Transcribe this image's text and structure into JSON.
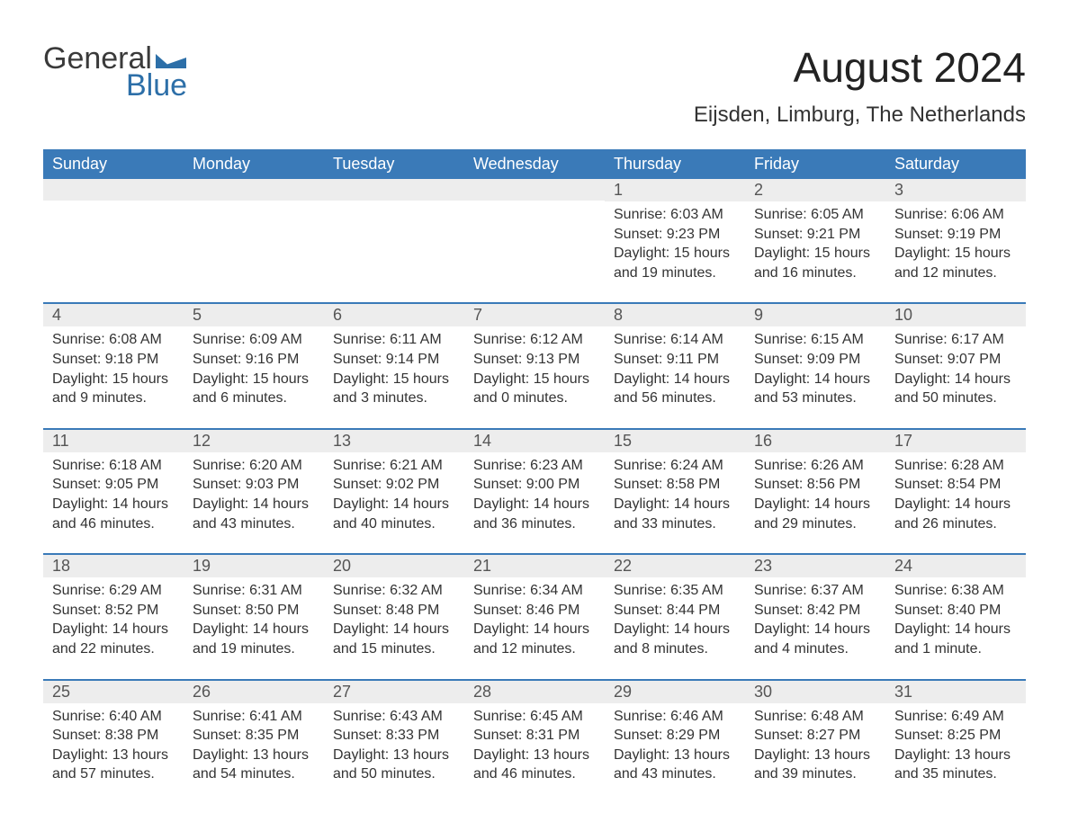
{
  "brand": {
    "word1": "General",
    "word2": "Blue"
  },
  "title": "August 2024",
  "location": "Eijsden, Limburg, The Netherlands",
  "colors": {
    "header_bg": "#3a7ab8",
    "header_fg": "#ffffff",
    "row_sep": "#3a7ab8",
    "grey_band": "#ededed",
    "brand_blue": "#2d6fa8",
    "text": "#2b2b2b",
    "page_bg": "#ffffff"
  },
  "layout": {
    "columns": 7,
    "col_width_pct": 14.28
  },
  "day_headers": [
    "Sunday",
    "Monday",
    "Tuesday",
    "Wednesday",
    "Thursday",
    "Friday",
    "Saturday"
  ],
  "labels": {
    "sunrise": "Sunrise:",
    "sunset": "Sunset:",
    "daylight": "Daylight:"
  },
  "weeks": [
    [
      null,
      null,
      null,
      null,
      {
        "d": "1",
        "sunrise": "6:03 AM",
        "sunset": "9:23 PM",
        "daylight": "15 hours and 19 minutes."
      },
      {
        "d": "2",
        "sunrise": "6:05 AM",
        "sunset": "9:21 PM",
        "daylight": "15 hours and 16 minutes."
      },
      {
        "d": "3",
        "sunrise": "6:06 AM",
        "sunset": "9:19 PM",
        "daylight": "15 hours and 12 minutes."
      }
    ],
    [
      {
        "d": "4",
        "sunrise": "6:08 AM",
        "sunset": "9:18 PM",
        "daylight": "15 hours and 9 minutes."
      },
      {
        "d": "5",
        "sunrise": "6:09 AM",
        "sunset": "9:16 PM",
        "daylight": "15 hours and 6 minutes."
      },
      {
        "d": "6",
        "sunrise": "6:11 AM",
        "sunset": "9:14 PM",
        "daylight": "15 hours and 3 minutes."
      },
      {
        "d": "7",
        "sunrise": "6:12 AM",
        "sunset": "9:13 PM",
        "daylight": "15 hours and 0 minutes."
      },
      {
        "d": "8",
        "sunrise": "6:14 AM",
        "sunset": "9:11 PM",
        "daylight": "14 hours and 56 minutes."
      },
      {
        "d": "9",
        "sunrise": "6:15 AM",
        "sunset": "9:09 PM",
        "daylight": "14 hours and 53 minutes."
      },
      {
        "d": "10",
        "sunrise": "6:17 AM",
        "sunset": "9:07 PM",
        "daylight": "14 hours and 50 minutes."
      }
    ],
    [
      {
        "d": "11",
        "sunrise": "6:18 AM",
        "sunset": "9:05 PM",
        "daylight": "14 hours and 46 minutes."
      },
      {
        "d": "12",
        "sunrise": "6:20 AM",
        "sunset": "9:03 PM",
        "daylight": "14 hours and 43 minutes."
      },
      {
        "d": "13",
        "sunrise": "6:21 AM",
        "sunset": "9:02 PM",
        "daylight": "14 hours and 40 minutes."
      },
      {
        "d": "14",
        "sunrise": "6:23 AM",
        "sunset": "9:00 PM",
        "daylight": "14 hours and 36 minutes."
      },
      {
        "d": "15",
        "sunrise": "6:24 AM",
        "sunset": "8:58 PM",
        "daylight": "14 hours and 33 minutes."
      },
      {
        "d": "16",
        "sunrise": "6:26 AM",
        "sunset": "8:56 PM",
        "daylight": "14 hours and 29 minutes."
      },
      {
        "d": "17",
        "sunrise": "6:28 AM",
        "sunset": "8:54 PM",
        "daylight": "14 hours and 26 minutes."
      }
    ],
    [
      {
        "d": "18",
        "sunrise": "6:29 AM",
        "sunset": "8:52 PM",
        "daylight": "14 hours and 22 minutes."
      },
      {
        "d": "19",
        "sunrise": "6:31 AM",
        "sunset": "8:50 PM",
        "daylight": "14 hours and 19 minutes."
      },
      {
        "d": "20",
        "sunrise": "6:32 AM",
        "sunset": "8:48 PM",
        "daylight": "14 hours and 15 minutes."
      },
      {
        "d": "21",
        "sunrise": "6:34 AM",
        "sunset": "8:46 PM",
        "daylight": "14 hours and 12 minutes."
      },
      {
        "d": "22",
        "sunrise": "6:35 AM",
        "sunset": "8:44 PM",
        "daylight": "14 hours and 8 minutes."
      },
      {
        "d": "23",
        "sunrise": "6:37 AM",
        "sunset": "8:42 PM",
        "daylight": "14 hours and 4 minutes."
      },
      {
        "d": "24",
        "sunrise": "6:38 AM",
        "sunset": "8:40 PM",
        "daylight": "14 hours and 1 minute."
      }
    ],
    [
      {
        "d": "25",
        "sunrise": "6:40 AM",
        "sunset": "8:38 PM",
        "daylight": "13 hours and 57 minutes."
      },
      {
        "d": "26",
        "sunrise": "6:41 AM",
        "sunset": "8:35 PM",
        "daylight": "13 hours and 54 minutes."
      },
      {
        "d": "27",
        "sunrise": "6:43 AM",
        "sunset": "8:33 PM",
        "daylight": "13 hours and 50 minutes."
      },
      {
        "d": "28",
        "sunrise": "6:45 AM",
        "sunset": "8:31 PM",
        "daylight": "13 hours and 46 minutes."
      },
      {
        "d": "29",
        "sunrise": "6:46 AM",
        "sunset": "8:29 PM",
        "daylight": "13 hours and 43 minutes."
      },
      {
        "d": "30",
        "sunrise": "6:48 AM",
        "sunset": "8:27 PM",
        "daylight": "13 hours and 39 minutes."
      },
      {
        "d": "31",
        "sunrise": "6:49 AM",
        "sunset": "8:25 PM",
        "daylight": "13 hours and 35 minutes."
      }
    ]
  ]
}
